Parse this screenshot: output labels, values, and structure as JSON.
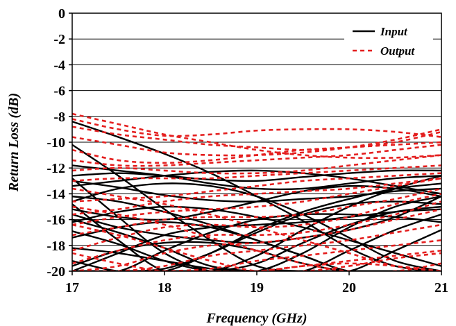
{
  "chart_data": {
    "type": "line",
    "title": "",
    "xlabel": "Frequency (GHz)",
    "ylabel": "Return Loss (dB)",
    "xlim": [
      17,
      21
    ],
    "ylim": [
      -20,
      0
    ],
    "x_ticks": [
      17,
      18,
      19,
      20,
      21
    ],
    "x_tick_labels": [
      "17",
      "18",
      "19",
      "20",
      "21"
    ],
    "y_ticks": [
      0,
      -2,
      -4,
      -6,
      -8,
      -10,
      -12,
      -14,
      -16,
      -18,
      -20
    ],
    "y_tick_labels": [
      "0",
      "-2",
      "-4",
      "-6",
      "-8",
      "-10",
      "-12",
      "-14",
      "-16",
      "-18",
      "-20"
    ],
    "grid": "horizontal",
    "legend_position": "top-right",
    "x": [
      17,
      17.5,
      18,
      18.5,
      19,
      19.5,
      20,
      20.5,
      21
    ],
    "series": [
      {
        "name": "Input",
        "color": "#000000",
        "style": "solid",
        "curves": [
          [
            -8.4,
            -9.6,
            -10.9,
            -12.4,
            -14.2,
            -16.1,
            -18.2,
            -19.6,
            -20.0
          ],
          [
            -10.2,
            -12.6,
            -15.2,
            -17.6,
            -19.6,
            -20.0,
            -20.0,
            -20.0,
            -20.0
          ],
          [
            -12.8,
            -15.8,
            -18.6,
            -20.0,
            -20.0,
            -20.0,
            -20.0,
            -20.0,
            -20.0
          ],
          [
            -14.8,
            -17.6,
            -20.0,
            -20.0,
            -20.0,
            -20.0,
            -20.0,
            -20.0,
            -20.0
          ],
          [
            -15.6,
            -16.6,
            -17.2,
            -17.6,
            -17.8,
            -17.4,
            -16.8,
            -15.8,
            -14.2
          ],
          [
            -16.9,
            -17.9,
            -19.2,
            -20.0,
            -20.0,
            -20.0,
            -20.0,
            -20.0,
            -20.0
          ],
          [
            -18.2,
            -18.6,
            -19.2,
            -19.8,
            -20.0,
            -20.0,
            -20.0,
            -20.0,
            -20.0
          ],
          [
            -19.2,
            -20.0,
            -20.0,
            -20.0,
            -20.0,
            -20.0,
            -20.0,
            -20.0,
            -20.0
          ],
          [
            -11.8,
            -12.2,
            -12.6,
            -13.2,
            -13.6,
            -13.6,
            -13.2,
            -12.8,
            -12.6
          ],
          [
            -12.6,
            -12.4,
            -12.6,
            -12.9,
            -13.0,
            -12.7,
            -12.4,
            -12.2,
            -12.2
          ],
          [
            -13.4,
            -13.0,
            -12.6,
            -12.3,
            -12.2,
            -12.4,
            -12.8,
            -13.4,
            -14.0
          ],
          [
            -13.0,
            -13.5,
            -14.1,
            -14.5,
            -14.6,
            -14.4,
            -14.2,
            -13.8,
            -13.6
          ],
          [
            -20.0,
            -18.6,
            -17.2,
            -16.6,
            -16.4,
            -16.2,
            -15.8,
            -15.4,
            -15.2
          ],
          [
            -20.0,
            -20.0,
            -18.4,
            -17.0,
            -16.0,
            -15.6,
            -15.6,
            -15.8,
            -16.2
          ],
          [
            -20.0,
            -20.0,
            -20.0,
            -18.6,
            -16.8,
            -15.4,
            -14.4,
            -13.6,
            -13.2
          ],
          [
            -20.0,
            -20.0,
            -20.0,
            -20.0,
            -18.8,
            -16.8,
            -15.0,
            -13.6,
            -12.6
          ],
          [
            -20.0,
            -20.0,
            -20.0,
            -20.0,
            -20.0,
            -18.6,
            -16.6,
            -15.0,
            -14.2
          ],
          [
            -20.0,
            -20.0,
            -20.0,
            -20.0,
            -20.0,
            -20.0,
            -18.4,
            -16.8,
            -15.6
          ],
          [
            -16.2,
            -15.4,
            -15.0,
            -15.2,
            -15.8,
            -16.6,
            -17.6,
            -18.6,
            -19.6
          ],
          [
            -17.4,
            -16.6,
            -16.2,
            -16.6,
            -17.6,
            -18.8,
            -20.0,
            -20.0,
            -20.0
          ],
          [
            -14.2,
            -14.6,
            -15.4,
            -16.4,
            -17.6,
            -18.8,
            -20.0,
            -20.0,
            -20.0
          ],
          [
            -14.6,
            -13.6,
            -13.2,
            -13.4,
            -14.2,
            -15.6,
            -17.4,
            -19.2,
            -20.0
          ],
          [
            -15.2,
            -15.8,
            -16.0,
            -15.4,
            -14.6,
            -13.8,
            -13.4,
            -13.6,
            -14.2
          ],
          [
            -20.0,
            -20.0,
            -19.8,
            -18.6,
            -17.0,
            -15.6,
            -14.8,
            -14.6,
            -14.8
          ],
          [
            -20.0,
            -20.0,
            -20.0,
            -20.0,
            -19.4,
            -17.8,
            -16.4,
            -15.4,
            -15.0
          ],
          [
            -16.0,
            -17.0,
            -18.2,
            -19.6,
            -20.0,
            -20.0,
            -20.0,
            -20.0,
            -20.0
          ],
          [
            -20.0,
            -20.0,
            -20.0,
            -20.0,
            -20.0,
            -20.0,
            -20.0,
            -18.4,
            -16.8
          ],
          [
            -19.6,
            -18.4,
            -17.8,
            -17.8,
            -18.4,
            -19.4,
            -20.0,
            -20.0,
            -20.0
          ]
        ]
      },
      {
        "name": "Output",
        "color": "#e41e1e",
        "style": "dashed",
        "curves": [
          [
            -7.8,
            -8.6,
            -9.4,
            -10.0,
            -10.6,
            -11.0,
            -11.2,
            -11.2,
            -11.0
          ],
          [
            -8.2,
            -9.0,
            -9.5,
            -9.4,
            -9.1,
            -9.0,
            -9.0,
            -9.2,
            -9.6
          ],
          [
            -8.8,
            -9.4,
            -9.8,
            -10.2,
            -10.4,
            -10.6,
            -10.4,
            -10.0,
            -9.2
          ],
          [
            -9.6,
            -10.2,
            -10.8,
            -11.0,
            -11.0,
            -10.8,
            -10.4,
            -9.8,
            -9.0
          ],
          [
            -10.6,
            -11.4,
            -11.6,
            -11.4,
            -11.0,
            -10.6,
            -10.4,
            -10.2,
            -10.0
          ],
          [
            -11.4,
            -11.8,
            -11.8,
            -11.6,
            -11.4,
            -11.2,
            -11.0,
            -10.6,
            -10.2
          ],
          [
            -12.2,
            -12.0,
            -12.2,
            -12.4,
            -12.4,
            -12.2,
            -11.8,
            -11.4,
            -11.0
          ],
          [
            -13.0,
            -12.8,
            -12.8,
            -12.8,
            -12.6,
            -12.4,
            -12.2,
            -12.0,
            -11.8
          ],
          [
            -14.6,
            -14.4,
            -14.2,
            -13.8,
            -13.4,
            -13.0,
            -12.8,
            -12.6,
            -12.4
          ],
          [
            -15.6,
            -15.2,
            -14.6,
            -14.2,
            -14.0,
            -13.8,
            -13.6,
            -13.2,
            -12.8
          ],
          [
            -16.4,
            -15.8,
            -15.4,
            -15.2,
            -15.0,
            -14.6,
            -14.0,
            -13.4,
            -12.8
          ],
          [
            -17.2,
            -16.6,
            -16.0,
            -15.8,
            -15.8,
            -15.6,
            -15.0,
            -14.4,
            -13.6
          ],
          [
            -18.4,
            -17.4,
            -16.6,
            -16.4,
            -16.6,
            -16.4,
            -15.8,
            -14.8,
            -14.0
          ],
          [
            -19.4,
            -18.4,
            -17.6,
            -17.2,
            -17.2,
            -17.0,
            -16.4,
            -15.6,
            -14.6
          ],
          [
            -20.0,
            -19.6,
            -18.6,
            -18.0,
            -17.8,
            -17.4,
            -16.8,
            -16.0,
            -15.2
          ],
          [
            -20.0,
            -20.0,
            -19.6,
            -18.8,
            -18.4,
            -18.0,
            -17.6,
            -17.0,
            -16.4
          ],
          [
            -20.0,
            -20.0,
            -20.0,
            -19.8,
            -19.2,
            -18.8,
            -18.4,
            -18.0,
            -17.6
          ],
          [
            -20.0,
            -20.0,
            -20.0,
            -20.0,
            -20.0,
            -19.6,
            -19.2,
            -18.8,
            -18.4
          ],
          [
            -15.0,
            -15.6,
            -16.4,
            -17.4,
            -18.4,
            -19.4,
            -20.0,
            -20.0,
            -19.4
          ],
          [
            -16.4,
            -17.2,
            -18.2,
            -19.2,
            -20.0,
            -20.0,
            -19.6,
            -19.0,
            -18.6
          ],
          [
            -13.6,
            -14.2,
            -14.8,
            -15.6,
            -16.6,
            -17.6,
            -18.6,
            -19.6,
            -20.0
          ],
          [
            -18.6,
            -19.4,
            -20.0,
            -20.0,
            -20.0,
            -19.6,
            -19.4,
            -19.6,
            -20.0
          ]
        ]
      }
    ]
  }
}
